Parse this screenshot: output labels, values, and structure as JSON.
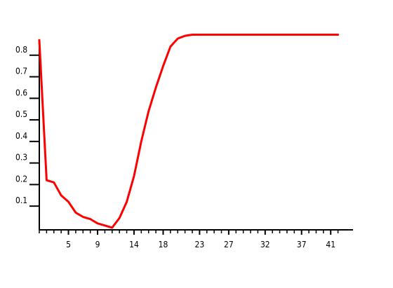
{
  "chart_data": {
    "type": "line",
    "title": "",
    "xlabel": "",
    "ylabel": "",
    "xlim": [
      1,
      43
    ],
    "ylim": [
      -0.01,
      0.9
    ],
    "x_ticks": [
      5,
      9,
      14,
      18,
      23,
      27,
      32,
      37,
      41
    ],
    "y_ticks": [
      0.1,
      0.2,
      0.3,
      0.4,
      0.5,
      0.6,
      0.7,
      0.8
    ],
    "y_tick_labels": [
      "0.1",
      "0.2",
      "0.3",
      "0.4",
      "0.5",
      "0.6",
      "0.7",
      "0.8"
    ],
    "x_tick_labels": [
      "5",
      "9",
      "14",
      "18",
      "23",
      "27",
      "32",
      "37",
      "41"
    ],
    "grid": false,
    "legend": "none",
    "series": [
      {
        "color": "#ff0000",
        "x": [
          1,
          2,
          3,
          4,
          5,
          6,
          7,
          8,
          9,
          10,
          11,
          12,
          13,
          14,
          15,
          16,
          17,
          18,
          19,
          20,
          21,
          22,
          23,
          24,
          25,
          26,
          27,
          28,
          29,
          30,
          31,
          32,
          33,
          34,
          35,
          36,
          37,
          38,
          39,
          40,
          41,
          42
        ],
        "y": [
          0.87,
          0.22,
          0.21,
          0.15,
          0.12,
          0.07,
          0.05,
          0.04,
          0.02,
          0.01,
          0.0,
          0.045,
          0.12,
          0.24,
          0.4,
          0.54,
          0.65,
          0.75,
          0.84,
          0.877,
          0.89,
          0.895,
          0.895,
          0.895,
          0.895,
          0.895,
          0.895,
          0.895,
          0.895,
          0.895,
          0.895,
          0.895,
          0.895,
          0.895,
          0.895,
          0.895,
          0.895,
          0.895,
          0.895,
          0.895,
          0.895,
          0.895
        ]
      }
    ]
  }
}
